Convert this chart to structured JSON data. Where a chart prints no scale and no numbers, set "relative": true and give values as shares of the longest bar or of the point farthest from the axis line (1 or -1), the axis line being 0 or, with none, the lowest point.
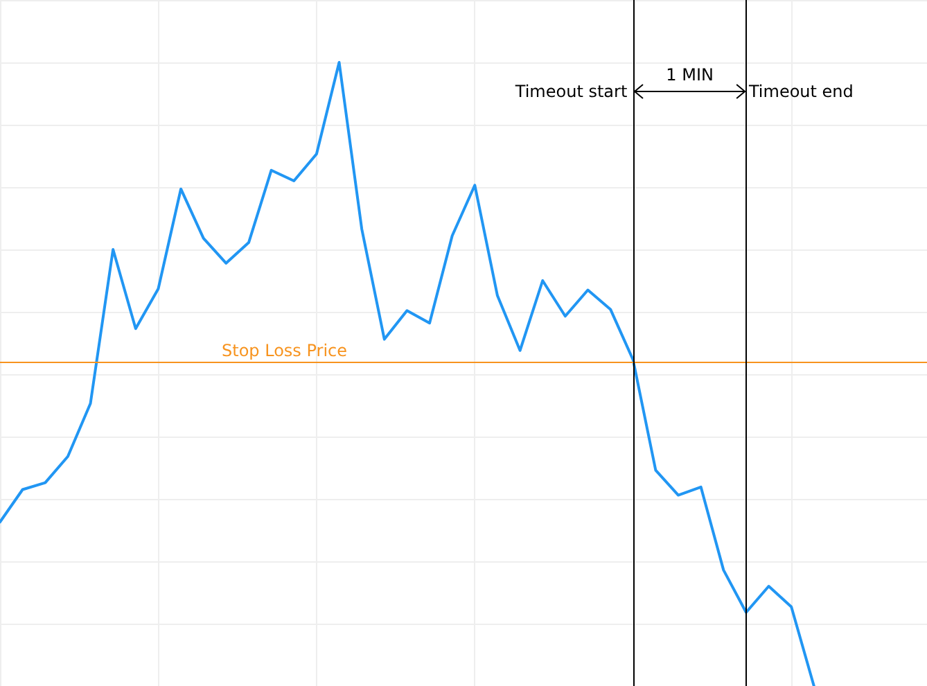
{
  "chart_data": {
    "type": "line",
    "relative": true,
    "tick_labels": false,
    "grid": true,
    "marker": "none",
    "line_style": "solid",
    "categories": [
      null,
      null,
      null,
      null,
      null,
      null,
      null,
      null,
      null,
      null,
      null,
      null,
      null,
      null,
      null,
      null,
      null,
      null,
      null,
      null,
      null,
      null,
      null,
      null,
      null,
      null,
      null,
      null,
      null,
      null,
      null,
      null,
      null,
      null,
      null,
      null,
      null,
      null,
      null,
      null,
      null,
      null
    ],
    "series": [
      {
        "color": "#2196f3",
        "values": [
          0.263,
          0.315,
          0.326,
          0.368,
          0.453,
          0.7,
          0.573,
          0.637,
          0.797,
          0.718,
          0.678,
          0.711,
          0.827,
          0.81,
          0.853,
          1,
          0.733,
          0.556,
          0.602,
          0.582,
          0.722,
          0.803,
          0.626,
          0.538,
          0.65,
          0.593,
          0.635,
          0.604,
          0.523,
          0.346,
          0.306,
          0.319,
          0.186,
          0.118,
          0.16,
          0.127,
          0,
          null,
          null,
          null,
          null,
          null
        ]
      }
    ],
    "ref_lines": [
      {
        "axis": "y",
        "value": 0.519,
        "label": "Stop Loss Price",
        "color": "#f7931e"
      }
    ],
    "annotations": [
      "Timeout start",
      "1 MIN",
      "Timeout end"
    ]
  }
}
